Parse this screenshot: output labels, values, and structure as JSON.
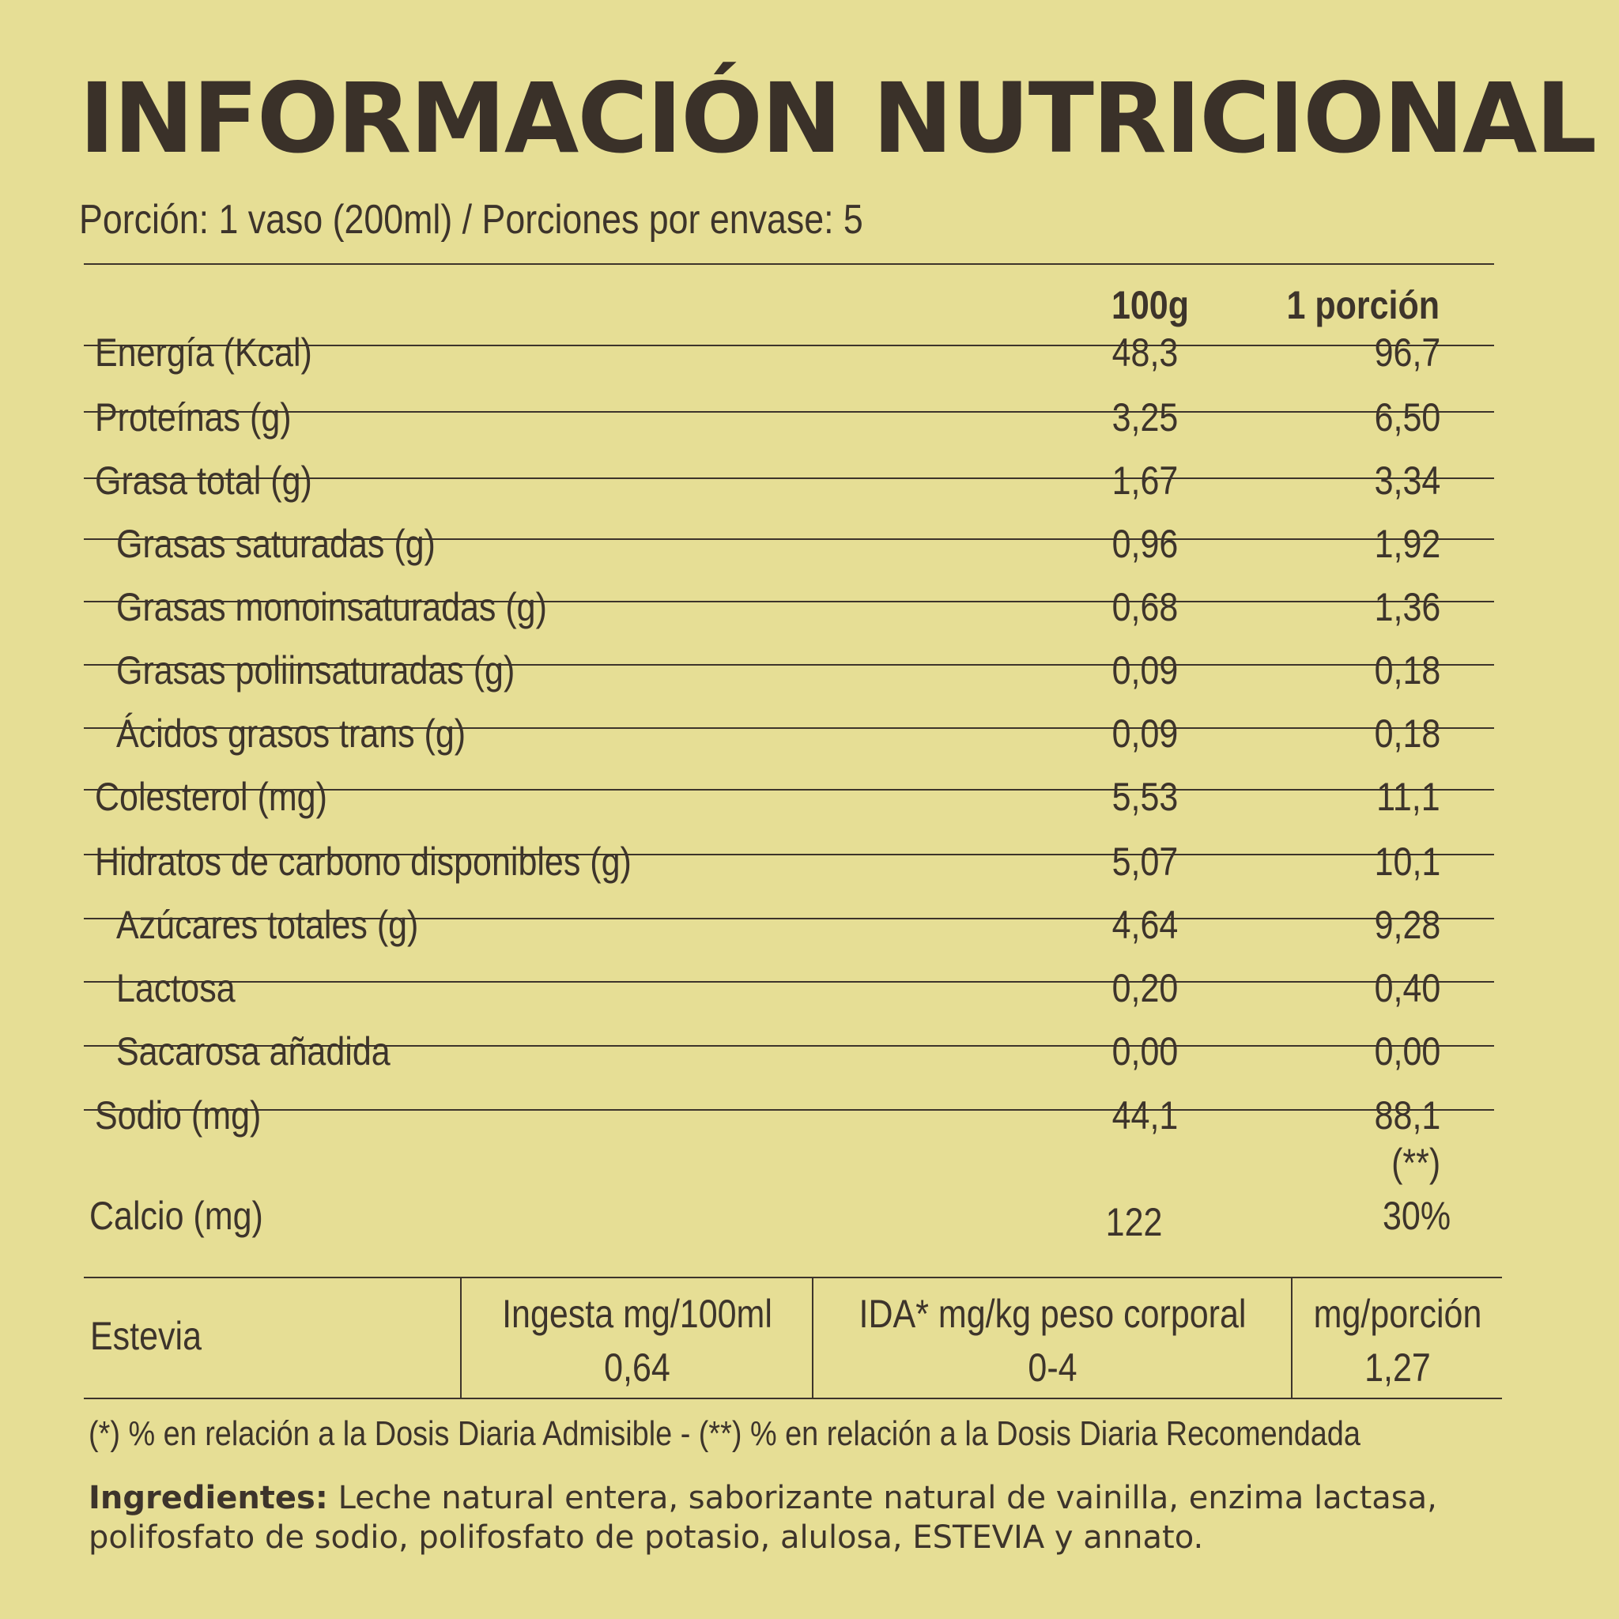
{
  "title": "INFORMACIÓN NUTRICIONAL",
  "portion_info": "Porción: 1 vaso (200ml) / Porciones por envase: 5",
  "table": {
    "columns": [
      "100g",
      "1 porción"
    ],
    "rows": [
      {
        "label": "Energía (Kcal)",
        "v100": "48,3",
        "vportion": "96,7"
      },
      {
        "label": "Proteínas (g)",
        "v100": "3,25",
        "vportion": "6,50"
      },
      {
        "label": "Grasa total (g)",
        "v100": "1,67",
        "vportion": "3,34"
      },
      {
        "label": "Grasas saturadas (g)",
        "v100": "0,96",
        "vportion": "1,92"
      },
      {
        "label": "Grasas monoinsaturadas (g)",
        "v100": "0,68",
        "vportion": "1,36"
      },
      {
        "label": "Grasas poliinsaturadas (g)",
        "v100": "0,09",
        "vportion": "0,18"
      },
      {
        "label": "Ácidos grasos trans (g)",
        "v100": "0,09",
        "vportion": "0,18"
      },
      {
        "label": "Colesterol (mg)",
        "v100": "5,53",
        "vportion": "11,1"
      },
      {
        "label": "Hidratos de carbono disponibles (g)",
        "v100": "5,07",
        "vportion": "10,1"
      },
      {
        "label": "Azúcares totales (g)",
        "v100": "4,64",
        "vportion": "9,28"
      },
      {
        "label": "Lactosa",
        "v100": "0,20",
        "vportion": "0,40"
      },
      {
        "label": "Sacarosa añadida",
        "v100": "0,00",
        "vportion": "0,00"
      },
      {
        "label": "Sodio (mg)",
        "v100": "44,1",
        "vportion": "88,1",
        "vportion_note": "(**)"
      },
      {
        "label": "Calcio (mg)",
        "v100": "122",
        "vportion": "30%"
      }
    ]
  },
  "stevia": {
    "label": "Estevia",
    "intake_header": "Ingesta mg/100ml",
    "intake_value": "0,64",
    "ida_header": "IDA* mg/kg peso corporal",
    "ida_value": "0-4",
    "per_portion_header": "mg/porción",
    "per_portion_value": "1,27"
  },
  "footnote": "(*) % en relación a la Dosis Diaria Admisible - (**) % en relación a la Dosis Diaria Recomendada",
  "ingredients": {
    "label": "Ingredientes:",
    "text": " Leche natural entera, saborizante natural de vainilla, enzima lactasa, polifosfato de sodio, polifosfato de potasio, alulosa, ESTEVIA y annato."
  }
}
